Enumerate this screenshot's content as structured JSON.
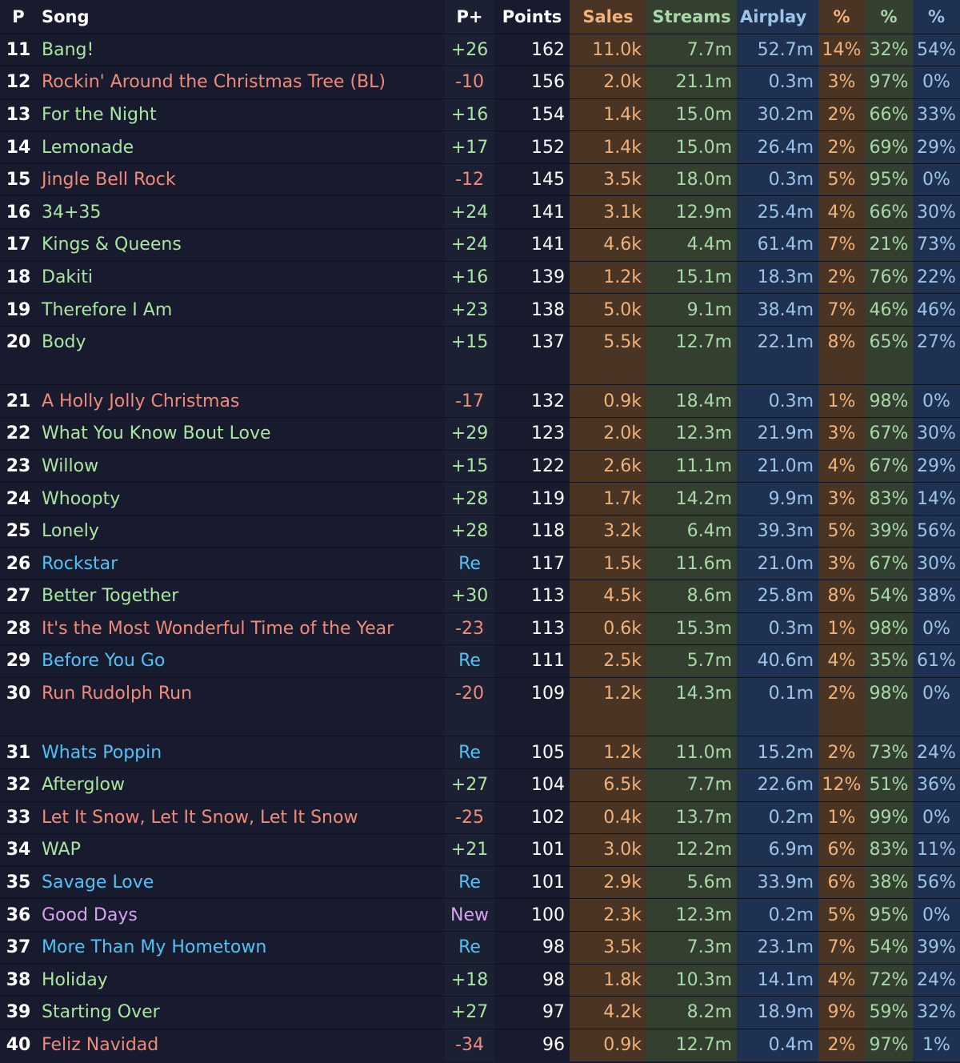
{
  "headers": {
    "pos": "P",
    "song": "Song",
    "change": "P+",
    "points": "Points",
    "sales": "Sales",
    "streams": "Streams",
    "airplay": "Airplay",
    "sales_pct": "%",
    "streams_pct": "%",
    "airplay_pct": "%"
  },
  "status_colors": {
    "up": "#a8e6a1",
    "down": "#f08a7a",
    "re": "#4fc3f7",
    "new": "#d9a2f0"
  },
  "groups": [
    {
      "rows": [
        {
          "pos": "11",
          "song": "Bang!",
          "change": "+26",
          "points": "162",
          "sales": "11.0k",
          "streams": "7.7m",
          "airplay": "52.7m",
          "sales_pct": "14%",
          "streams_pct": "32%",
          "airplay_pct": "54%",
          "status": "up"
        },
        {
          "pos": "12",
          "song": "Rockin' Around the Christmas Tree (BL)",
          "change": "-10",
          "points": "156",
          "sales": "2.0k",
          "streams": "21.1m",
          "airplay": "0.3m",
          "sales_pct": "3%",
          "streams_pct": "97%",
          "airplay_pct": "0%",
          "status": "down"
        },
        {
          "pos": "13",
          "song": "For the Night",
          "change": "+16",
          "points": "154",
          "sales": "1.4k",
          "streams": "15.0m",
          "airplay": "30.2m",
          "sales_pct": "2%",
          "streams_pct": "66%",
          "airplay_pct": "33%",
          "status": "up"
        },
        {
          "pos": "14",
          "song": "Lemonade",
          "change": "+17",
          "points": "152",
          "sales": "1.4k",
          "streams": "15.0m",
          "airplay": "26.4m",
          "sales_pct": "2%",
          "streams_pct": "69%",
          "airplay_pct": "29%",
          "status": "up"
        },
        {
          "pos": "15",
          "song": "Jingle Bell Rock",
          "change": "-12",
          "points": "145",
          "sales": "3.5k",
          "streams": "18.0m",
          "airplay": "0.3m",
          "sales_pct": "5%",
          "streams_pct": "95%",
          "airplay_pct": "0%",
          "status": "down"
        },
        {
          "pos": "16",
          "song": "34+35",
          "change": "+24",
          "points": "141",
          "sales": "3.1k",
          "streams": "12.9m",
          "airplay": "25.4m",
          "sales_pct": "4%",
          "streams_pct": "66%",
          "airplay_pct": "30%",
          "status": "up"
        },
        {
          "pos": "17",
          "song": "Kings & Queens",
          "change": "+24",
          "points": "141",
          "sales": "4.6k",
          "streams": "4.4m",
          "airplay": "61.4m",
          "sales_pct": "7%",
          "streams_pct": "21%",
          "airplay_pct": "73%",
          "status": "up"
        },
        {
          "pos": "18",
          "song": "Dakiti",
          "change": "+16",
          "points": "139",
          "sales": "1.2k",
          "streams": "15.1m",
          "airplay": "18.3m",
          "sales_pct": "2%",
          "streams_pct": "76%",
          "airplay_pct": "22%",
          "status": "up"
        },
        {
          "pos": "19",
          "song": "Therefore I Am",
          "change": "+23",
          "points": "138",
          "sales": "5.0k",
          "streams": "9.1m",
          "airplay": "38.4m",
          "sales_pct": "7%",
          "streams_pct": "46%",
          "airplay_pct": "46%",
          "status": "up"
        },
        {
          "pos": "20",
          "song": "Body",
          "change": "+15",
          "points": "137",
          "sales": "5.5k",
          "streams": "12.7m",
          "airplay": "22.1m",
          "sales_pct": "8%",
          "streams_pct": "65%",
          "airplay_pct": "27%",
          "status": "up"
        }
      ]
    },
    {
      "rows": [
        {
          "pos": "21",
          "song": "A Holly Jolly Christmas",
          "change": "-17",
          "points": "132",
          "sales": "0.9k",
          "streams": "18.4m",
          "airplay": "0.3m",
          "sales_pct": "1%",
          "streams_pct": "98%",
          "airplay_pct": "0%",
          "status": "down"
        },
        {
          "pos": "22",
          "song": "What You Know Bout Love",
          "change": "+29",
          "points": "123",
          "sales": "2.0k",
          "streams": "12.3m",
          "airplay": "21.9m",
          "sales_pct": "3%",
          "streams_pct": "67%",
          "airplay_pct": "30%",
          "status": "up"
        },
        {
          "pos": "23",
          "song": "Willow",
          "change": "+15",
          "points": "122",
          "sales": "2.6k",
          "streams": "11.1m",
          "airplay": "21.0m",
          "sales_pct": "4%",
          "streams_pct": "67%",
          "airplay_pct": "29%",
          "status": "up"
        },
        {
          "pos": "24",
          "song": "Whoopty",
          "change": "+28",
          "points": "119",
          "sales": "1.7k",
          "streams": "14.2m",
          "airplay": "9.9m",
          "sales_pct": "3%",
          "streams_pct": "83%",
          "airplay_pct": "14%",
          "status": "up"
        },
        {
          "pos": "25",
          "song": "Lonely",
          "change": "+28",
          "points": "118",
          "sales": "3.2k",
          "streams": "6.4m",
          "airplay": "39.3m",
          "sales_pct": "5%",
          "streams_pct": "39%",
          "airplay_pct": "56%",
          "status": "up"
        },
        {
          "pos": "26",
          "song": "Rockstar",
          "change": "Re",
          "points": "117",
          "sales": "1.5k",
          "streams": "11.6m",
          "airplay": "21.0m",
          "sales_pct": "3%",
          "streams_pct": "67%",
          "airplay_pct": "30%",
          "status": "re"
        },
        {
          "pos": "27",
          "song": "Better Together",
          "change": "+30",
          "points": "113",
          "sales": "4.5k",
          "streams": "8.6m",
          "airplay": "25.8m",
          "sales_pct": "8%",
          "streams_pct": "54%",
          "airplay_pct": "38%",
          "status": "up"
        },
        {
          "pos": "28",
          "song": "It's the Most Wonderful Time of the Year",
          "change": "-23",
          "points": "113",
          "sales": "0.6k",
          "streams": "15.3m",
          "airplay": "0.3m",
          "sales_pct": "1%",
          "streams_pct": "98%",
          "airplay_pct": "0%",
          "status": "down"
        },
        {
          "pos": "29",
          "song": "Before You Go",
          "change": "Re",
          "points": "111",
          "sales": "2.5k",
          "streams": "5.7m",
          "airplay": "40.6m",
          "sales_pct": "4%",
          "streams_pct": "35%",
          "airplay_pct": "61%",
          "status": "re"
        },
        {
          "pos": "30",
          "song": "Run Rudolph Run",
          "change": "-20",
          "points": "109",
          "sales": "1.2k",
          "streams": "14.3m",
          "airplay": "0.1m",
          "sales_pct": "2%",
          "streams_pct": "98%",
          "airplay_pct": "0%",
          "status": "down"
        }
      ]
    },
    {
      "rows": [
        {
          "pos": "31",
          "song": "Whats Poppin",
          "change": "Re",
          "points": "105",
          "sales": "1.2k",
          "streams": "11.0m",
          "airplay": "15.2m",
          "sales_pct": "2%",
          "streams_pct": "73%",
          "airplay_pct": "24%",
          "status": "re"
        },
        {
          "pos": "32",
          "song": "Afterglow",
          "change": "+27",
          "points": "104",
          "sales": "6.5k",
          "streams": "7.7m",
          "airplay": "22.6m",
          "sales_pct": "12%",
          "streams_pct": "51%",
          "airplay_pct": "36%",
          "status": "up"
        },
        {
          "pos": "33",
          "song": "Let It Snow, Let It Snow, Let It Snow",
          "change": "-25",
          "points": "102",
          "sales": "0.4k",
          "streams": "13.7m",
          "airplay": "0.2m",
          "sales_pct": "1%",
          "streams_pct": "99%",
          "airplay_pct": "0%",
          "status": "down"
        },
        {
          "pos": "34",
          "song": "WAP",
          "change": "+21",
          "points": "101",
          "sales": "3.0k",
          "streams": "12.2m",
          "airplay": "6.9m",
          "sales_pct": "6%",
          "streams_pct": "83%",
          "airplay_pct": "11%",
          "status": "up"
        },
        {
          "pos": "35",
          "song": "Savage Love",
          "change": "Re",
          "points": "101",
          "sales": "2.9k",
          "streams": "5.6m",
          "airplay": "33.9m",
          "sales_pct": "6%",
          "streams_pct": "38%",
          "airplay_pct": "56%",
          "status": "re"
        },
        {
          "pos": "36",
          "song": "Good Days",
          "change": "New",
          "points": "100",
          "sales": "2.3k",
          "streams": "12.3m",
          "airplay": "0.2m",
          "sales_pct": "5%",
          "streams_pct": "95%",
          "airplay_pct": "0%",
          "status": "new"
        },
        {
          "pos": "37",
          "song": "More Than My Hometown",
          "change": "Re",
          "points": "98",
          "sales": "3.5k",
          "streams": "7.3m",
          "airplay": "23.1m",
          "sales_pct": "7%",
          "streams_pct": "54%",
          "airplay_pct": "39%",
          "status": "re"
        },
        {
          "pos": "38",
          "song": "Holiday",
          "change": "+18",
          "points": "98",
          "sales": "1.8k",
          "streams": "10.3m",
          "airplay": "14.1m",
          "sales_pct": "4%",
          "streams_pct": "72%",
          "airplay_pct": "24%",
          "status": "up"
        },
        {
          "pos": "39",
          "song": "Starting Over",
          "change": "+27",
          "points": "97",
          "sales": "4.2k",
          "streams": "8.2m",
          "airplay": "18.9m",
          "sales_pct": "9%",
          "streams_pct": "59%",
          "airplay_pct": "32%",
          "status": "up"
        },
        {
          "pos": "40",
          "song": "Feliz Navidad",
          "change": "-34",
          "points": "96",
          "sales": "0.9k",
          "streams": "12.7m",
          "airplay": "0.4m",
          "sales_pct": "2%",
          "streams_pct": "97%",
          "airplay_pct": "1%",
          "status": "down"
        }
      ]
    }
  ]
}
